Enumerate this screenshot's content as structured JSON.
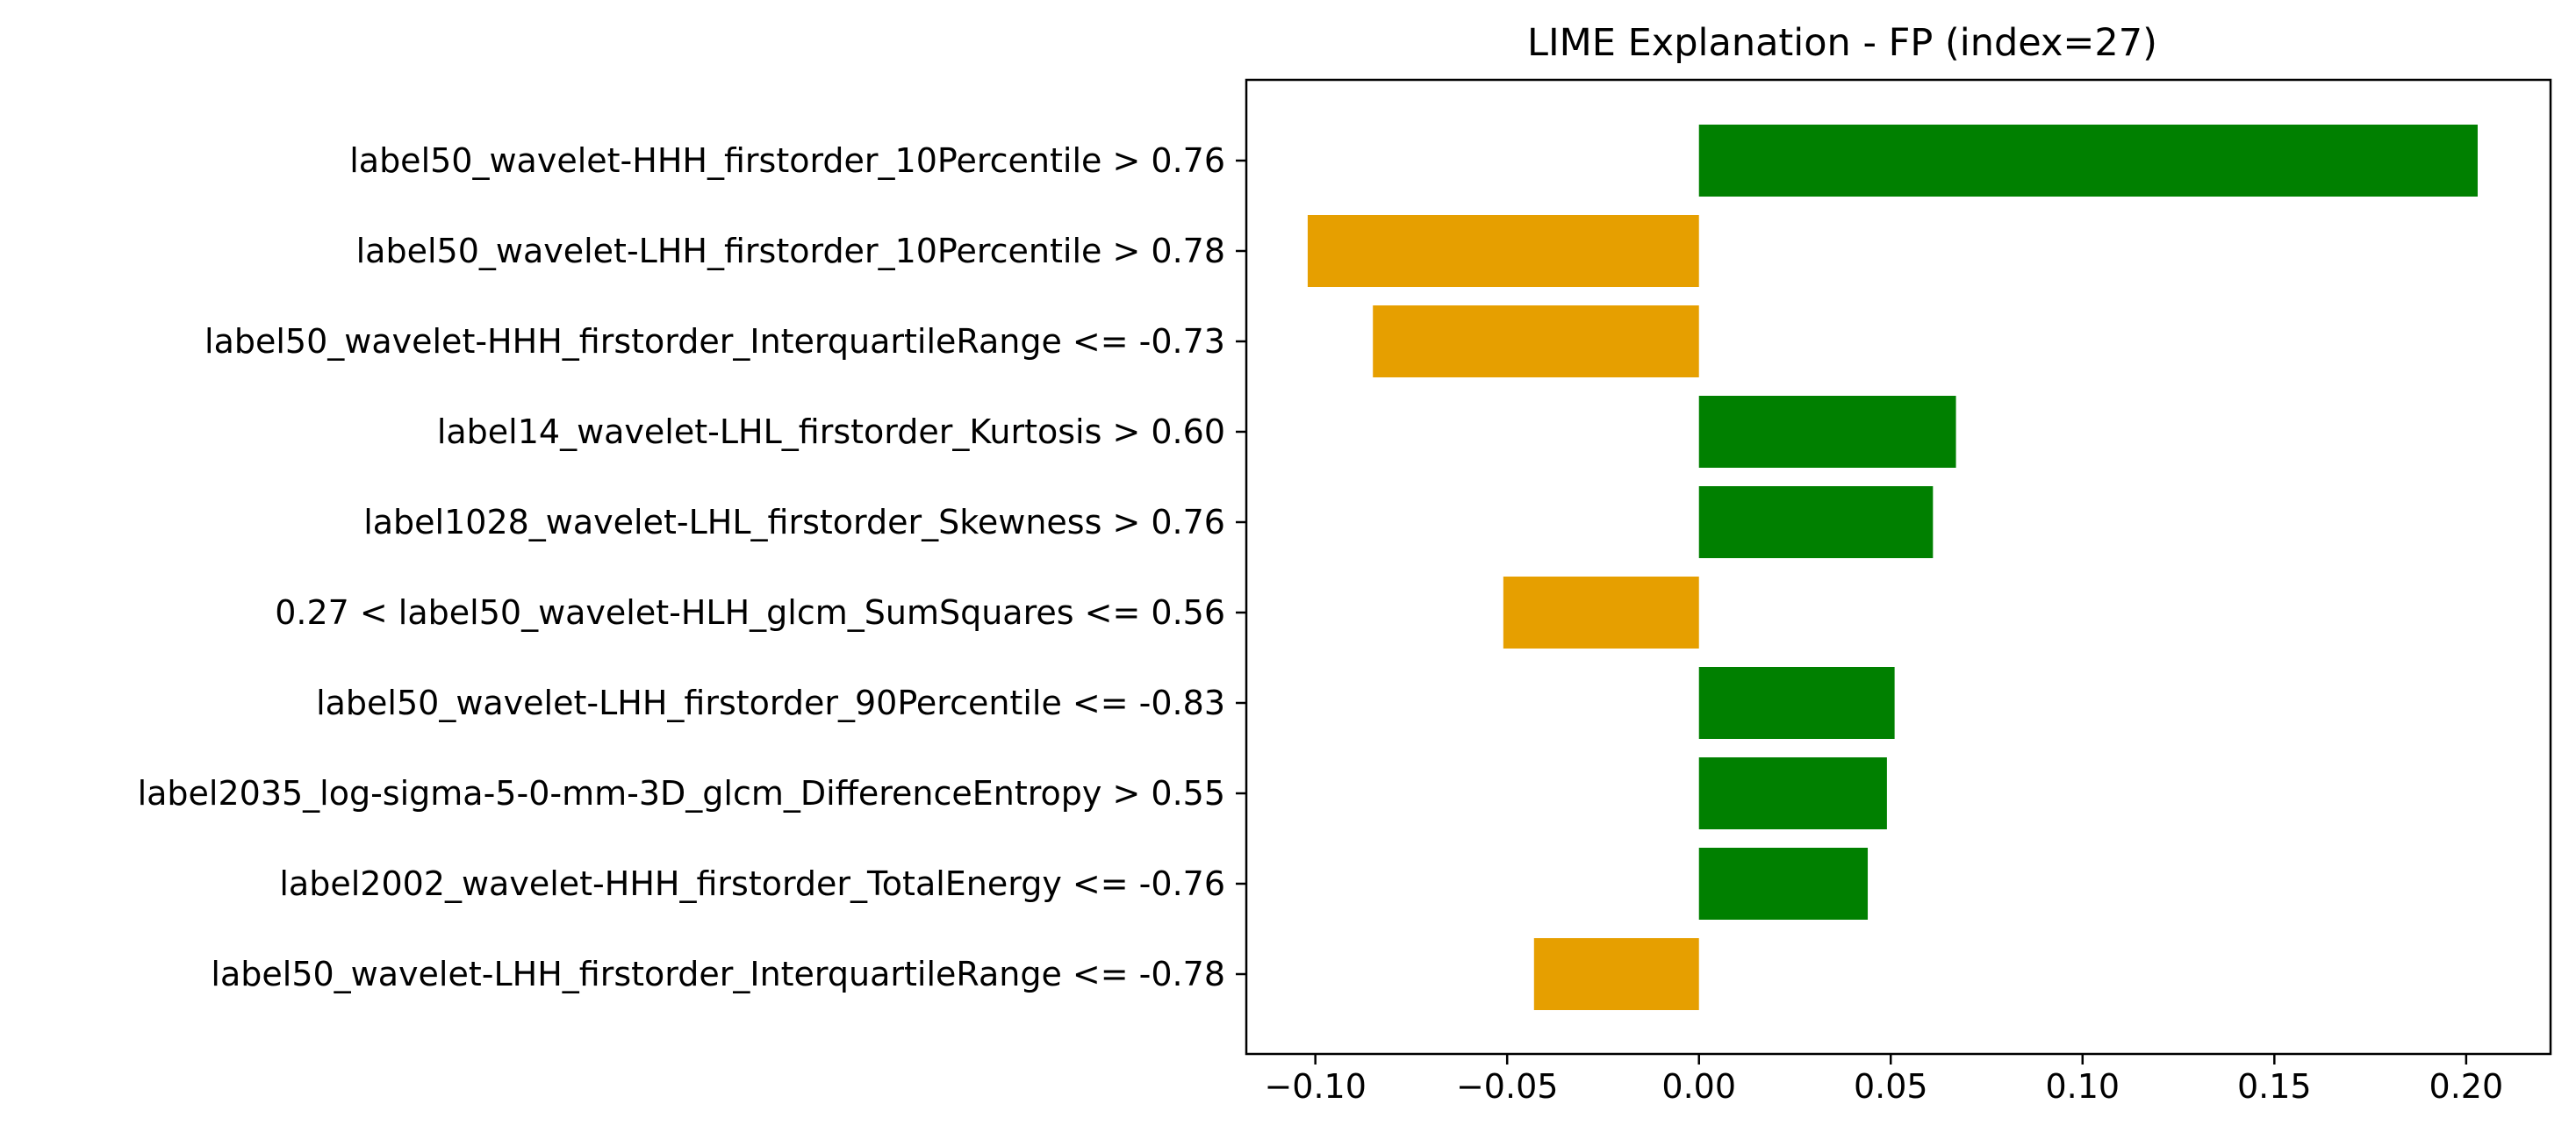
{
  "chart_data": {
    "type": "bar",
    "orientation": "horizontal",
    "title": "LIME Explanation - FP (index=27)",
    "xlabel": "",
    "ylabel": "",
    "xlim": [
      -0.118,
      0.222
    ],
    "xticks": [
      -0.1,
      -0.05,
      0.0,
      0.05,
      0.1,
      0.15,
      0.2
    ],
    "xtick_labels": [
      "−0.10",
      "−0.05",
      "0.00",
      "0.05",
      "0.10",
      "0.15",
      "0.20"
    ],
    "grid": false,
    "legend": "none",
    "positive_color": "#008000",
    "negative_color": "#E69F00",
    "categories": [
      "label50_wavelet-HHH_firstorder_10Percentile > 0.76",
      "label50_wavelet-LHH_firstorder_10Percentile > 0.78",
      "label50_wavelet-HHH_firstorder_InterquartileRange <= -0.73",
      "label14_wavelet-LHL_firstorder_Kurtosis > 0.60",
      "label1028_wavelet-LHL_firstorder_Skewness > 0.76",
      "0.27 < label50_wavelet-HLH_glcm_SumSquares <= 0.56",
      "label50_wavelet-LHH_firstorder_90Percentile <= -0.83",
      "label2035_log-sigma-5-0-mm-3D_glcm_DifferenceEntropy > 0.55",
      "label2002_wavelet-HHH_firstorder_TotalEnergy <= -0.76",
      "label50_wavelet-LHH_firstorder_InterquartileRange <= -0.78"
    ],
    "values": [
      0.203,
      -0.102,
      -0.085,
      0.067,
      0.061,
      -0.051,
      0.051,
      0.049,
      0.044,
      -0.043
    ]
  }
}
